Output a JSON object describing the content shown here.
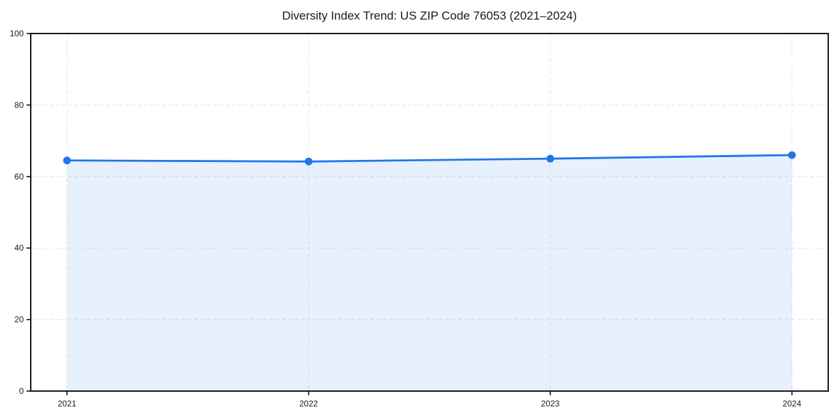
{
  "chart_data": {
    "type": "line",
    "title": "Diversity Index Trend: US ZIP Code 76053 (2021–2024)",
    "categories": [
      "2021",
      "2022",
      "2023",
      "2024"
    ],
    "series": [
      {
        "name": "Diversity Index",
        "values": [
          64.5,
          64.2,
          65.0,
          66.0
        ]
      }
    ],
    "xlabel": "",
    "ylabel": "",
    "ylim": [
      0,
      100
    ],
    "yticks": [
      0,
      20,
      40,
      60,
      80,
      100
    ],
    "grid": true,
    "grid_style": "dashed",
    "legend": "none",
    "area_fill": true,
    "colors": {
      "line": "#2176eb",
      "marker": "#2176eb",
      "area_fill": "rgba(33,118,235,0.11)",
      "gridline": "#e2e2e2",
      "axis": "#000000",
      "text": "#1a1a1a",
      "background": "#ffffff"
    }
  }
}
